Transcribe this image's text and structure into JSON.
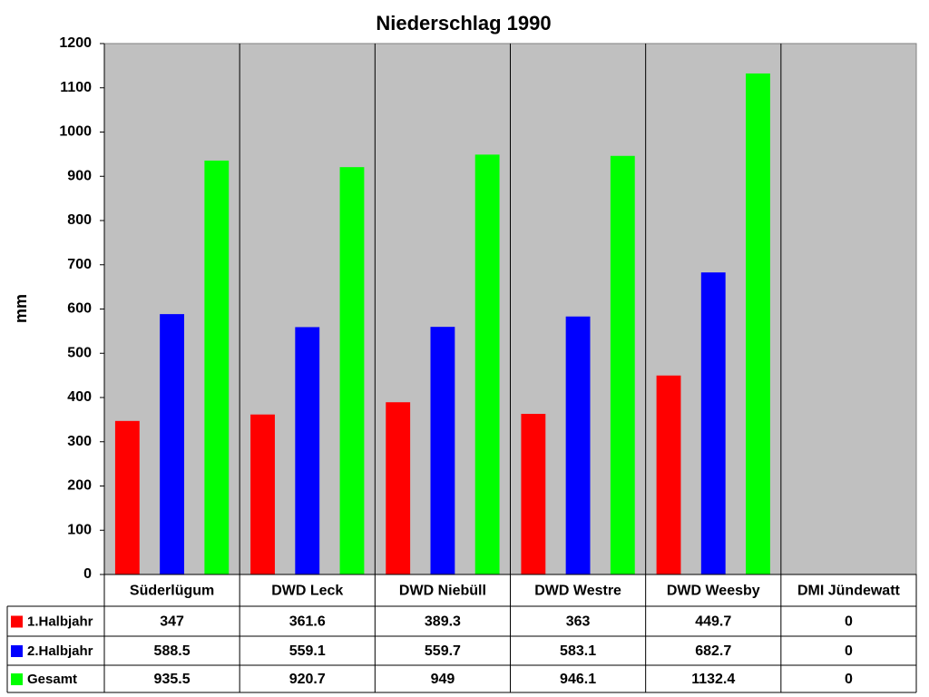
{
  "chart_data": {
    "type": "bar",
    "title": "Niederschlag 1990",
    "ylabel": "mm",
    "categories": [
      "Süderlügum",
      "DWD Leck",
      "DWD Niebüll",
      "DWD Westre",
      "DWD Weesby",
      "DMI Jündewatt"
    ],
    "series": [
      {
        "name": "1.Halbjahr",
        "color": "#ff0000",
        "values": [
          347,
          361.6,
          389.3,
          363,
          449.7,
          0
        ]
      },
      {
        "name": "2.Halbjahr",
        "color": "#0000ff",
        "values": [
          588.5,
          559.1,
          559.7,
          583.1,
          682.7,
          0
        ]
      },
      {
        "name": "Gesamt",
        "color": "#00ff00",
        "values": [
          935.5,
          920.7,
          949,
          946.1,
          1132.4,
          0
        ]
      }
    ],
    "ylim": [
      0,
      1200
    ],
    "yticks": [
      0,
      100,
      200,
      300,
      400,
      500,
      600,
      700,
      800,
      900,
      1000,
      1100,
      1200
    ],
    "plot_background": "#c0c0c0",
    "data_table": true
  }
}
